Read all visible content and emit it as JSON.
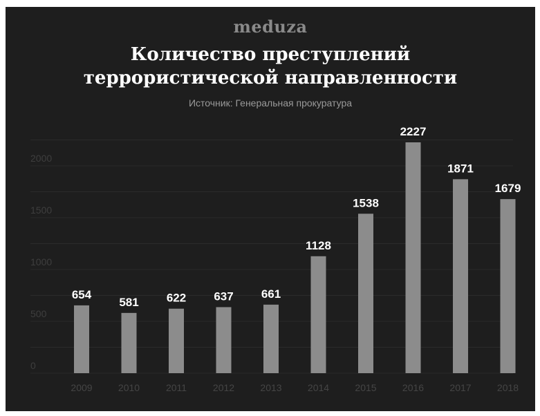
{
  "brand": "meduza",
  "title_line1": "Количество преступлений",
  "title_line2": "террористической направленности",
  "subtitle": "Источник: Генеральная прокуратура",
  "colors": {
    "background": "#1e1e1e",
    "bar": "#8c8c8c",
    "title": "#ffffff",
    "axis_text": "#454545"
  },
  "chart_data": {
    "type": "bar",
    "categories": [
      "2009",
      "2010",
      "2011",
      "2012",
      "2013",
      "2014",
      "2015",
      "2016",
      "2017",
      "2018"
    ],
    "values": [
      654,
      581,
      622,
      637,
      661,
      1128,
      1538,
      2227,
      1871,
      1679
    ],
    "yticks": [
      0,
      500,
      1000,
      1500,
      2000
    ],
    "ylim": [
      0,
      2400
    ],
    "grid": true,
    "data_labels": true
  }
}
